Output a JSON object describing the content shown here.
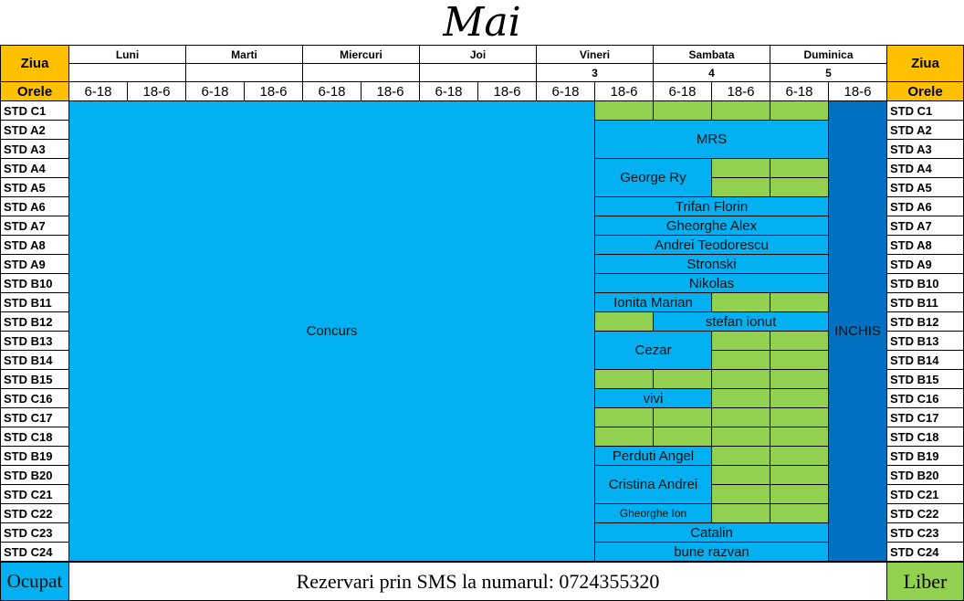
{
  "title": "Mai",
  "header": {
    "ziua_label": "Ziua",
    "orele_label": "Orele",
    "days": [
      {
        "name": "Luni",
        "number": ""
      },
      {
        "name": "Marti",
        "number": ""
      },
      {
        "name": "Miercuri",
        "number": ""
      },
      {
        "name": "Joi",
        "number": ""
      },
      {
        "name": "Vineri",
        "number": "3"
      },
      {
        "name": "Sambata",
        "number": "4"
      },
      {
        "name": "Duminica",
        "number": "5"
      }
    ],
    "shifts": [
      "6-18",
      "18-6"
    ]
  },
  "stands": [
    "STD C1",
    "STD A2",
    "STD A3",
    "STD A4",
    "STD A5",
    "STD A6",
    "STD A7",
    "STD A8",
    "STD A9",
    "STD B10",
    "STD B11",
    "STD B12",
    "STD B13",
    "STD B14",
    "STD B15",
    "STD C16",
    "STD C17",
    "STD C18",
    "STD B19",
    "STD B20",
    "STD C21",
    "STD C22",
    "STD C23",
    "STD C24"
  ],
  "colors": {
    "ocupat": "#00b0f0",
    "liber": "#92d050",
    "inchis": "#0070c0",
    "header": "#ffc000"
  },
  "bookings": [
    {
      "name": "Concurs",
      "status": "ocupat",
      "r": 0,
      "c": 0,
      "rs": 24,
      "cs": 9
    },
    {
      "name": "INCHIS",
      "status": "inchis",
      "r": 0,
      "c": 13,
      "rs": 24,
      "cs": 1
    },
    {
      "name": "",
      "status": "liber",
      "r": 0,
      "c": 9,
      "rs": 1,
      "cs": 1
    },
    {
      "name": "",
      "status": "liber",
      "r": 0,
      "c": 10,
      "rs": 1,
      "cs": 1
    },
    {
      "name": "",
      "status": "liber",
      "r": 0,
      "c": 11,
      "rs": 1,
      "cs": 1
    },
    {
      "name": "",
      "status": "liber",
      "r": 0,
      "c": 12,
      "rs": 1,
      "cs": 1
    },
    {
      "name": "MRS",
      "status": "ocupat",
      "r": 1,
      "c": 9,
      "rs": 2,
      "cs": 4
    },
    {
      "name": "George Ry",
      "status": "ocupat",
      "r": 3,
      "c": 9,
      "rs": 2,
      "cs": 2
    },
    {
      "name": "",
      "status": "liber",
      "r": 3,
      "c": 11,
      "rs": 1,
      "cs": 1
    },
    {
      "name": "",
      "status": "liber",
      "r": 3,
      "c": 12,
      "rs": 1,
      "cs": 1
    },
    {
      "name": "",
      "status": "liber",
      "r": 4,
      "c": 11,
      "rs": 1,
      "cs": 1
    },
    {
      "name": "",
      "status": "liber",
      "r": 4,
      "c": 12,
      "rs": 1,
      "cs": 1
    },
    {
      "name": "Trifan Florin",
      "status": "ocupat",
      "r": 5,
      "c": 9,
      "rs": 1,
      "cs": 4
    },
    {
      "name": "Gheorghe Alex",
      "status": "ocupat",
      "r": 6,
      "c": 9,
      "rs": 1,
      "cs": 4
    },
    {
      "name": "Andrei Teodorescu",
      "status": "ocupat",
      "r": 7,
      "c": 9,
      "rs": 1,
      "cs": 4
    },
    {
      "name": "Stronski",
      "status": "ocupat",
      "r": 8,
      "c": 9,
      "rs": 1,
      "cs": 4
    },
    {
      "name": "Nikolas",
      "status": "ocupat",
      "r": 9,
      "c": 9,
      "rs": 1,
      "cs": 4
    },
    {
      "name": "Ionita Marian",
      "status": "ocupat",
      "r": 10,
      "c": 9,
      "rs": 1,
      "cs": 2
    },
    {
      "name": "",
      "status": "liber",
      "r": 10,
      "c": 11,
      "rs": 1,
      "cs": 1
    },
    {
      "name": "",
      "status": "liber",
      "r": 10,
      "c": 12,
      "rs": 1,
      "cs": 1
    },
    {
      "name": "",
      "status": "liber",
      "r": 11,
      "c": 9,
      "rs": 1,
      "cs": 1
    },
    {
      "name": "stefan ionut",
      "status": "ocupat",
      "r": 11,
      "c": 10,
      "rs": 1,
      "cs": 3
    },
    {
      "name": "Cezar",
      "status": "ocupat",
      "r": 12,
      "c": 9,
      "rs": 2,
      "cs": 2
    },
    {
      "name": "",
      "status": "liber",
      "r": 12,
      "c": 11,
      "rs": 1,
      "cs": 1
    },
    {
      "name": "",
      "status": "liber",
      "r": 12,
      "c": 12,
      "rs": 1,
      "cs": 1
    },
    {
      "name": "",
      "status": "liber",
      "r": 13,
      "c": 11,
      "rs": 1,
      "cs": 1
    },
    {
      "name": "",
      "status": "liber",
      "r": 13,
      "c": 12,
      "rs": 1,
      "cs": 1
    },
    {
      "name": "",
      "status": "liber",
      "r": 14,
      "c": 9,
      "rs": 1,
      "cs": 1
    },
    {
      "name": "",
      "status": "liber",
      "r": 14,
      "c": 10,
      "rs": 1,
      "cs": 1
    },
    {
      "name": "",
      "status": "liber",
      "r": 14,
      "c": 11,
      "rs": 1,
      "cs": 1
    },
    {
      "name": "",
      "status": "liber",
      "r": 14,
      "c": 12,
      "rs": 1,
      "cs": 1
    },
    {
      "name": "vivi",
      "status": "ocupat",
      "r": 15,
      "c": 9,
      "rs": 1,
      "cs": 2
    },
    {
      "name": "",
      "status": "liber",
      "r": 15,
      "c": 11,
      "rs": 1,
      "cs": 1
    },
    {
      "name": "",
      "status": "liber",
      "r": 15,
      "c": 12,
      "rs": 1,
      "cs": 1
    },
    {
      "name": "",
      "status": "liber",
      "r": 16,
      "c": 9,
      "rs": 1,
      "cs": 1
    },
    {
      "name": "",
      "status": "liber",
      "r": 16,
      "c": 10,
      "rs": 1,
      "cs": 1
    },
    {
      "name": "",
      "status": "liber",
      "r": 16,
      "c": 11,
      "rs": 1,
      "cs": 1
    },
    {
      "name": "",
      "status": "liber",
      "r": 16,
      "c": 12,
      "rs": 1,
      "cs": 1
    },
    {
      "name": "",
      "status": "liber",
      "r": 17,
      "c": 9,
      "rs": 1,
      "cs": 1
    },
    {
      "name": "",
      "status": "liber",
      "r": 17,
      "c": 10,
      "rs": 1,
      "cs": 1
    },
    {
      "name": "",
      "status": "liber",
      "r": 17,
      "c": 11,
      "rs": 1,
      "cs": 1
    },
    {
      "name": "",
      "status": "liber",
      "r": 17,
      "c": 12,
      "rs": 1,
      "cs": 1
    },
    {
      "name": "Perduti Angel",
      "status": "ocupat",
      "r": 18,
      "c": 9,
      "rs": 1,
      "cs": 2
    },
    {
      "name": "",
      "status": "liber",
      "r": 18,
      "c": 11,
      "rs": 1,
      "cs": 1
    },
    {
      "name": "",
      "status": "liber",
      "r": 18,
      "c": 12,
      "rs": 1,
      "cs": 1
    },
    {
      "name": "Cristina Andrei",
      "status": "ocupat",
      "r": 19,
      "c": 9,
      "rs": 2,
      "cs": 2
    },
    {
      "name": "",
      "status": "liber",
      "r": 19,
      "c": 11,
      "rs": 1,
      "cs": 1
    },
    {
      "name": "",
      "status": "liber",
      "r": 19,
      "c": 12,
      "rs": 1,
      "cs": 1
    },
    {
      "name": "",
      "status": "liber",
      "r": 20,
      "c": 11,
      "rs": 1,
      "cs": 1
    },
    {
      "name": "",
      "status": "liber",
      "r": 20,
      "c": 12,
      "rs": 1,
      "cs": 1
    },
    {
      "name": "Gheorghe Ion",
      "status": "ocupat",
      "r": 21,
      "c": 9,
      "rs": 1,
      "cs": 2,
      "small": true
    },
    {
      "name": "",
      "status": "liber",
      "r": 21,
      "c": 11,
      "rs": 1,
      "cs": 1
    },
    {
      "name": "",
      "status": "liber",
      "r": 21,
      "c": 12,
      "rs": 1,
      "cs": 1
    },
    {
      "name": "Catalin",
      "status": "ocupat",
      "r": 22,
      "c": 9,
      "rs": 1,
      "cs": 4
    },
    {
      "name": "bune razvan",
      "status": "ocupat",
      "r": 23,
      "c": 9,
      "rs": 1,
      "cs": 4
    }
  ],
  "footer": {
    "ocupat_label": "Ocupat",
    "sms_text": "Rezervari prin SMS la numarul: 0724355320",
    "liber_label": "Liber"
  }
}
